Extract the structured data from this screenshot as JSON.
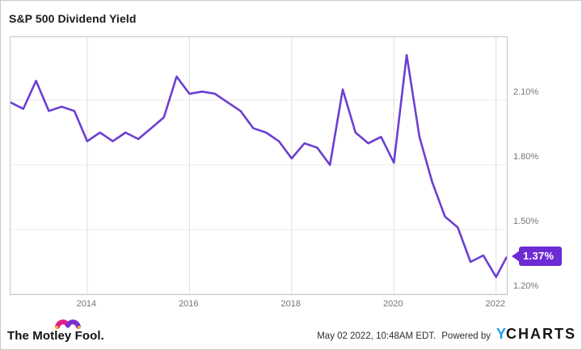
{
  "header": {
    "title": "S&P 500 Dividend Yield"
  },
  "chart_data": {
    "type": "line",
    "title": "S&P 500 Dividend Yield",
    "unit": "%",
    "x": [
      2012.5,
      2012.75,
      2013.0,
      2013.25,
      2013.5,
      2013.75,
      2014.0,
      2014.25,
      2014.5,
      2014.75,
      2015.0,
      2015.25,
      2015.5,
      2015.75,
      2016.0,
      2016.25,
      2016.5,
      2016.75,
      2017.0,
      2017.25,
      2017.5,
      2017.75,
      2018.0,
      2018.25,
      2018.5,
      2018.75,
      2019.0,
      2019.25,
      2019.5,
      2019.75,
      2020.0,
      2020.25,
      2020.5,
      2020.75,
      2021.0,
      2021.25,
      2021.5,
      2021.75,
      2022.0,
      2022.2
    ],
    "values": [
      2.09,
      2.06,
      2.19,
      2.05,
      2.07,
      2.05,
      1.91,
      1.95,
      1.91,
      1.95,
      1.92,
      1.97,
      2.02,
      2.21,
      2.13,
      2.14,
      2.13,
      2.09,
      2.05,
      1.97,
      1.95,
      1.91,
      1.83,
      1.9,
      1.88,
      1.8,
      2.15,
      1.95,
      1.9,
      1.93,
      1.81,
      2.31,
      1.93,
      1.72,
      1.56,
      1.51,
      1.35,
      1.38,
      1.28,
      1.37
    ],
    "x_ticks": [
      2014,
      2016,
      2018,
      2020,
      2022
    ],
    "x_tick_labels": [
      "2014",
      "2016",
      "2018",
      "2020",
      "2022"
    ],
    "y_ticks": [
      1.2,
      1.5,
      1.8,
      2.1
    ],
    "y_tick_labels": [
      "1.20%",
      "1.50%",
      "1.80%",
      "2.10%"
    ],
    "x_domain": [
      2012.5,
      2022.21
    ],
    "y_domain": [
      1.2,
      2.3925
    ],
    "grid": true,
    "legend": "none",
    "line_color": "#6c3fd3",
    "last_value_label": "1.37%"
  },
  "badge": {
    "label": "1.37%",
    "color": "#6c2bd5"
  },
  "footer": {
    "brand": "The Motley Fool.",
    "timestamp": "May 02 2022, 10:48AM EDT.",
    "powered_by": "Powered by",
    "ycharts_y": "Y",
    "ycharts_rest": "CHARTS"
  },
  "colors": {
    "accent_purple": "#6c3fd3",
    "badge_purple": "#6c2bd5",
    "ycharts_blue": "#1d9ce5",
    "fool_pink": "#e21d87",
    "fool_purple": "#7e2fd0",
    "fool_gold": "#f7b32b",
    "grid_gray": "#e0e0e0",
    "axis_text_gray": "#757575"
  }
}
